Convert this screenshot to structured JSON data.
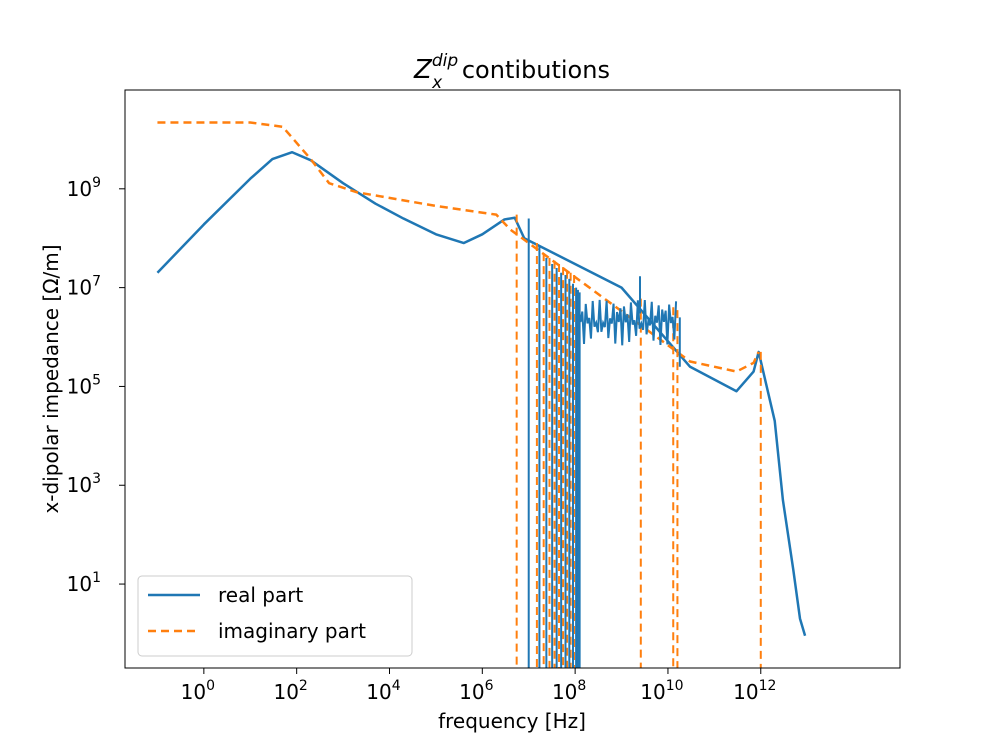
{
  "chart_data": {
    "type": "line",
    "title": {
      "base": "Z",
      "subscript": "x",
      "superscript": "dip",
      "rest": " contibutions"
    },
    "xlabel": "frequency [Hz]",
    "ylabel": "x-dipolar impedance [Ω/m]",
    "xscale": "log",
    "yscale": "log",
    "xlim": [
      0.02,
      1000000000000000.0
    ],
    "ylim": [
      0.2,
      100000000000.0
    ],
    "x_ticks": [
      {
        "exp": "0",
        "value": 1
      },
      {
        "exp": "2",
        "value": 100
      },
      {
        "exp": "4",
        "value": 10000
      },
      {
        "exp": "6",
        "value": 1000000
      },
      {
        "exp": "8",
        "value": 100000000
      },
      {
        "exp": "10",
        "value": 10000000000
      },
      {
        "exp": "12",
        "value": 1000000000000
      }
    ],
    "y_ticks": [
      {
        "exp": "1",
        "value": 10
      },
      {
        "exp": "3",
        "value": 1000
      },
      {
        "exp": "5",
        "value": 100000
      },
      {
        "exp": "7",
        "value": 10000000
      },
      {
        "exp": "9",
        "value": 1000000000
      }
    ],
    "grid": false,
    "legend": {
      "position": "lower-left"
    },
    "series": [
      {
        "name": "real part",
        "color": "#1f77b4",
        "style": "solid",
        "points": [
          [
            0.1,
            20000000.0
          ],
          [
            1,
            190000000.0
          ],
          [
            10,
            1600000000.0
          ],
          [
            30,
            4000000000.0
          ],
          [
            80,
            5500000000.0
          ],
          [
            200,
            3800000000.0
          ],
          [
            1000,
            1300000000.0
          ],
          [
            5000,
            500000000.0
          ],
          [
            20000,
            250000000.0
          ],
          [
            100000,
            120000000.0
          ],
          [
            400000,
            80000000.0
          ],
          [
            1000000,
            120000000.0
          ],
          [
            3000000,
            240000000.0
          ],
          [
            5000000,
            260000000.0
          ],
          [
            8000000,
            100000000.0
          ],
          [
            1000000000,
            10000000.0
          ],
          [
            30000000000,
            250000.0
          ],
          [
            300000000000,
            80000.0
          ],
          [
            700000000000,
            200000.0
          ],
          [
            900000000000,
            500000.0
          ],
          [
            2000000000000,
            20000.0
          ],
          [
            3000000000000,
            500
          ],
          [
            5000000000000,
            20
          ],
          [
            7000000000000,
            2
          ],
          [
            9000000000000,
            0.9
          ]
        ]
      },
      {
        "name": "imaginary part",
        "color": "#ff7f0e",
        "style": "dashed",
        "points": [
          [
            0.1,
            22000000000.0
          ],
          [
            10,
            22000000000.0
          ],
          [
            50,
            18000000000.0
          ],
          [
            200,
            4000000000.0
          ],
          [
            500,
            1300000000.0
          ],
          [
            2000,
            850000000.0
          ],
          [
            100000,
            450000000.0
          ],
          [
            2000000,
            300000000.0
          ],
          [
            4000000,
            150000000.0
          ],
          [
            30000000000,
            320000.0
          ],
          [
            300000000000,
            200000.0
          ],
          [
            700000000000,
            300000.0
          ],
          [
            900000000000,
            500000.0
          ]
        ]
      }
    ]
  }
}
